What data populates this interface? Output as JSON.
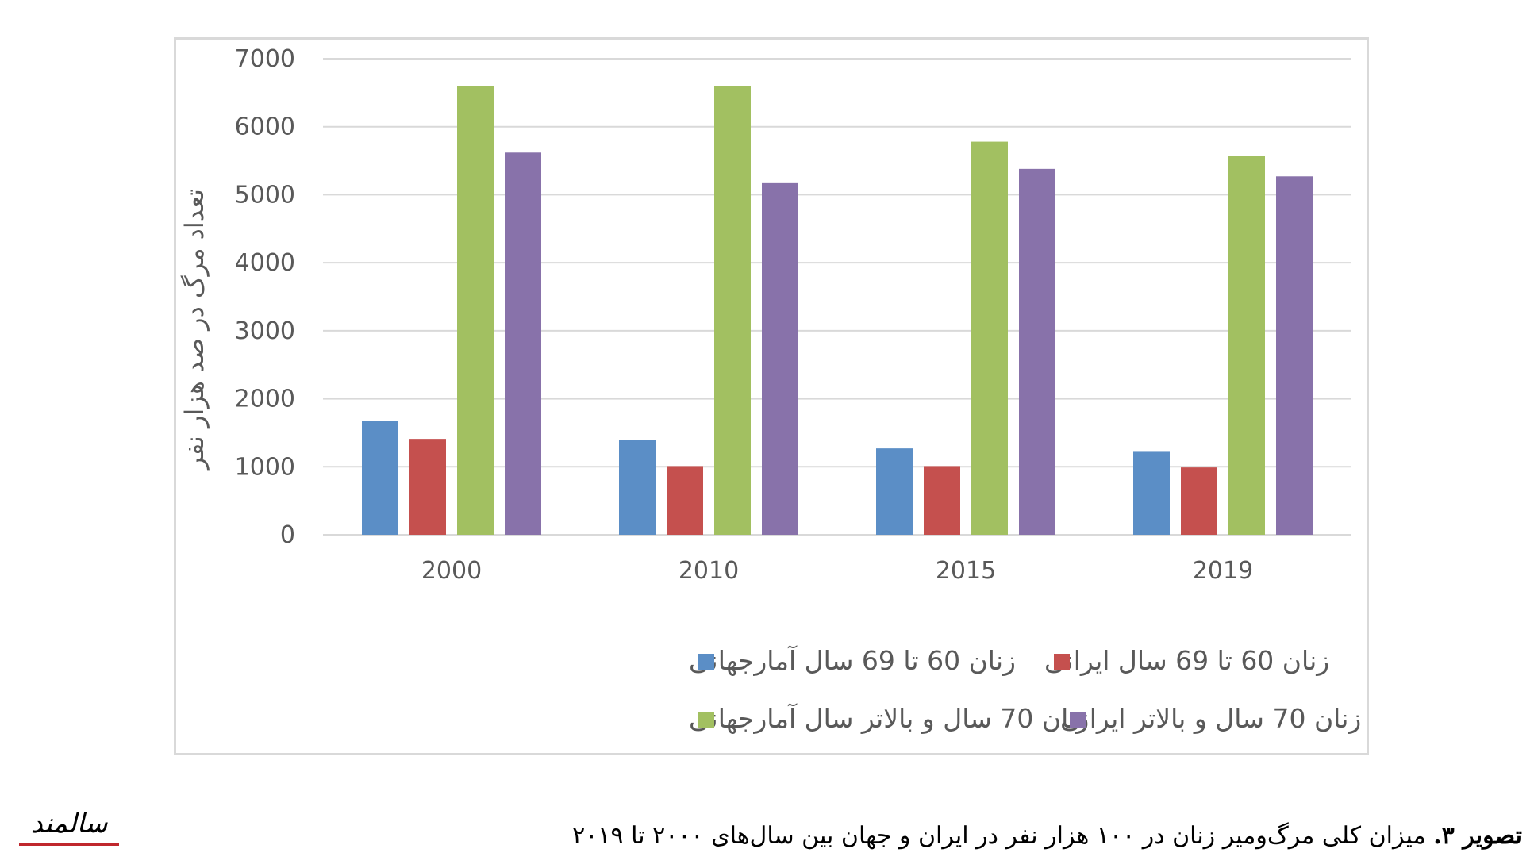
{
  "chart_data": {
    "type": "bar",
    "categories": [
      "2000",
      "2010",
      "2015",
      "2019"
    ],
    "series": [
      {
        "name": "زنان 60 تا 69 سال آمارجهانی",
        "color": "#5b8ec6",
        "values": [
          1670,
          1390,
          1270,
          1220
        ]
      },
      {
        "name": "زنان 60 تا 69 سال ایرانی",
        "color": "#c5504e",
        "values": [
          1410,
          1010,
          1010,
          990
        ]
      },
      {
        "name": "زنان 70 سال و بالاتر سال آمارجهانی",
        "color": "#a2c061",
        "values": [
          6600,
          6600,
          5780,
          5570
        ]
      },
      {
        "name": "زنان 70 سال و بالاتر ایرانی",
        "color": "#8872aa",
        "values": [
          5620,
          5170,
          5380,
          5270
        ]
      }
    ],
    "ylabel": "تعداد مرگ در صد هزار نفر",
    "ylim": [
      0,
      7000
    ],
    "yticks": [
      0,
      1000,
      2000,
      3000,
      4000,
      5000,
      6000,
      7000
    ],
    "grid": true,
    "legend_position": "bottom"
  },
  "caption": {
    "label": "تصویر ۳.",
    "text": " میزان کلی مرگ‌ومیر زنان در ۱۰۰ هزار نفر در ایران و جهان بین سال‌های ۲۰۰۰ تا ۲۰۱۹"
  },
  "logo": {
    "text": "سالمند",
    "color": "#c0272d"
  }
}
